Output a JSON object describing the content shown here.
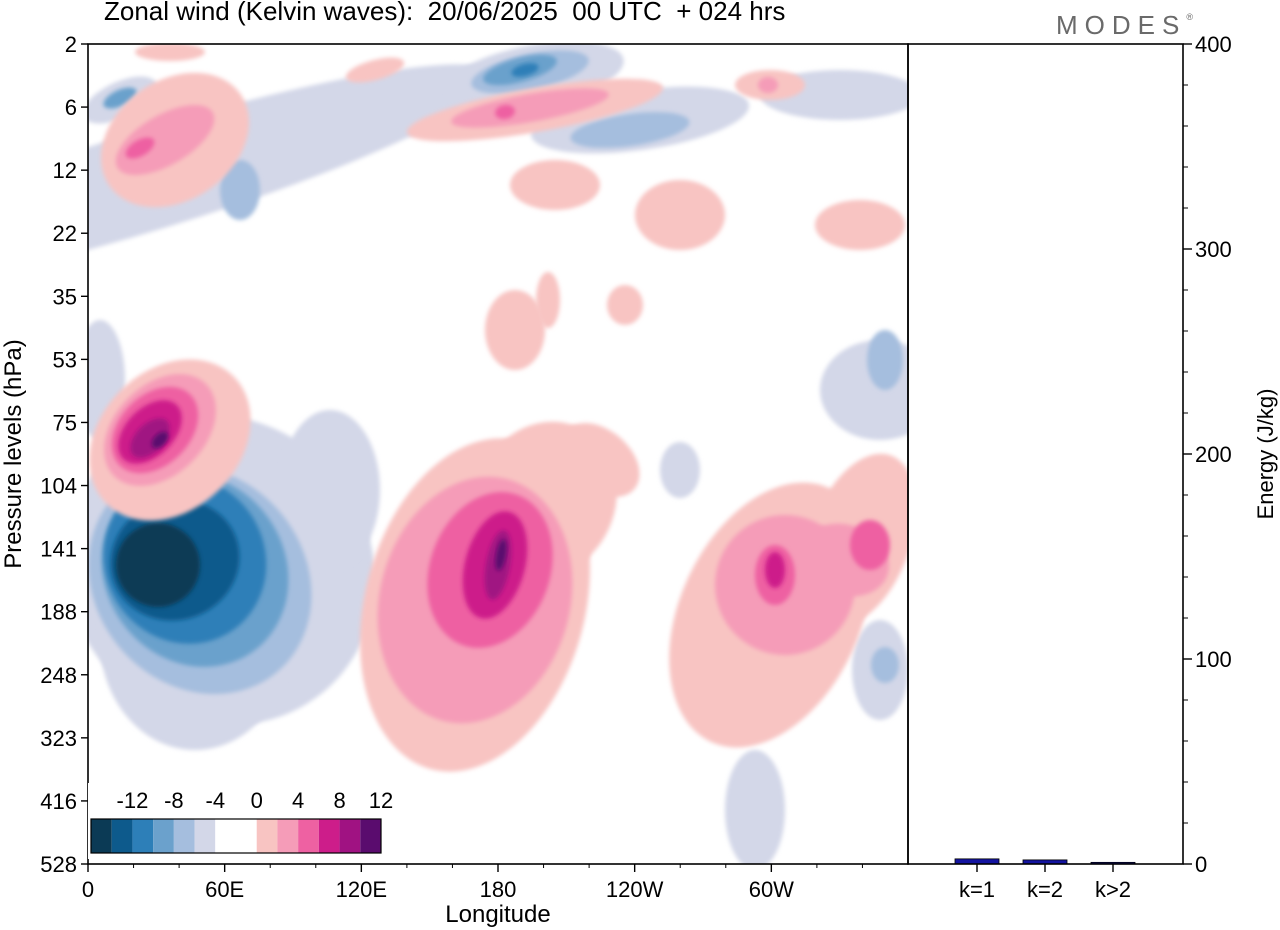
{
  "title": "Zonal wind (Kelvin waves):  20/06/2025  00 UTC  + 024 hrs",
  "brand": "MODES",
  "brand_mark": "®",
  "chart_data": [
    {
      "type": "heatmap",
      "title": "Zonal wind (Kelvin waves):  20/06/2025  00 UTC  + 024 hrs",
      "xlabel": "Longitude",
      "ylabel": "Pressure levels (hPa)",
      "x_ticks": [
        "0",
        "60E",
        "120E",
        "180",
        "120W",
        "60W"
      ],
      "x_tick_values": [
        0,
        60,
        120,
        180,
        240,
        300
      ],
      "xlim": [
        0,
        360
      ],
      "y_ticks": [
        "2",
        "6",
        "12",
        "22",
        "35",
        "53",
        "75",
        "104",
        "141",
        "188",
        "248",
        "323",
        "416",
        "528"
      ],
      "y_axis_inverted": true,
      "colorbar": {
        "tick_labels": [
          "-12",
          "-8",
          "-4",
          "0",
          "4",
          "8",
          "12"
        ],
        "colors": [
          "#0b3a55",
          "#0d5a8c",
          "#2d7fb8",
          "#6ba1cc",
          "#a5bede",
          "#d3d7e8",
          "#ffffff",
          "#ffffff",
          "#f8c4c2",
          "#f59cb8",
          "#ee61a2",
          "#cd1d8a",
          "#a01282",
          "#5a0c6e"
        ],
        "placement": "bottom-left"
      },
      "features": [
        {
          "sign": "negative",
          "peak": -14,
          "longitude": 30,
          "pressure": 141
        },
        {
          "sign": "positive",
          "peak": 14,
          "longitude": 28,
          "pressure": 90
        },
        {
          "sign": "positive",
          "peak": 12,
          "longitude": 180,
          "pressure": 141
        },
        {
          "sign": "positive",
          "peak": 10,
          "longitude": 295,
          "pressure": 141
        },
        {
          "sign": "negative",
          "peak": -8,
          "longitude": 200,
          "pressure": 3
        },
        {
          "sign": "positive",
          "peak": 10,
          "longitude": 185,
          "pressure": 6
        },
        {
          "sign": "positive",
          "peak": 8,
          "longitude": 25,
          "pressure": 10
        }
      ]
    },
    {
      "type": "bar",
      "categories": [
        "k=1",
        "k=2",
        "k>2"
      ],
      "values": [
        2.5,
        2,
        0.8
      ],
      "ylabel": "Energy (J/kg)",
      "ylim": [
        0,
        400
      ],
      "y_ticks": [
        "0",
        "100",
        "200",
        "300",
        "400"
      ],
      "bar_color": "#1414a0"
    }
  ]
}
